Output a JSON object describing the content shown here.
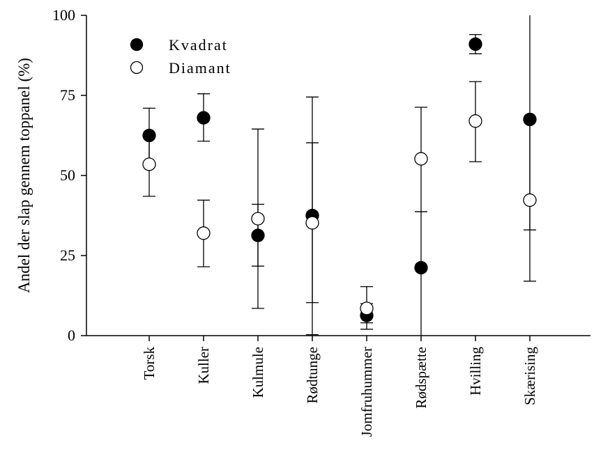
{
  "chart_data": {
    "type": "scatter",
    "title": "",
    "xlabel": "",
    "ylabel": "Andel der slap gennem toppanel (%)",
    "ylim": [
      0,
      100
    ],
    "yticks": [
      0,
      25,
      50,
      75,
      100
    ],
    "grid": false,
    "legend": "top-left",
    "categories": [
      "Torsk",
      "Kuller",
      "Kulmule",
      "Rødtunge",
      "Jomfruhummer",
      "Rødspætte",
      "Hvilling",
      "Skærising"
    ],
    "series": [
      {
        "name": "Kvadrat",
        "marker": "filled-circle",
        "color": "#000000",
        "values": [
          62.5,
          68,
          31.3,
          37.5,
          6.3,
          21.2,
          91,
          67.5
        ],
        "err_low": [
          53.5,
          60.7,
          21.7,
          10.3,
          2.0,
          0.0,
          88.0,
          33.0
        ],
        "err_high": [
          71.0,
          75.5,
          41.0,
          60.2,
          10.0,
          38.7,
          94.0,
          100
        ]
      },
      {
        "name": "Diamant",
        "marker": "open-circle",
        "color": "#ffffff",
        "values": [
          53.5,
          32,
          36.5,
          35.2,
          8.5,
          55.2,
          67,
          42.3
        ],
        "err_low": [
          43.5,
          21.5,
          8.5,
          0.3,
          4.0,
          38.7,
          54.3,
          17.0
        ],
        "err_high": [
          62.5,
          42.3,
          64.5,
          74.5,
          15.3,
          71.3,
          79.3,
          67.5
        ]
      }
    ]
  }
}
